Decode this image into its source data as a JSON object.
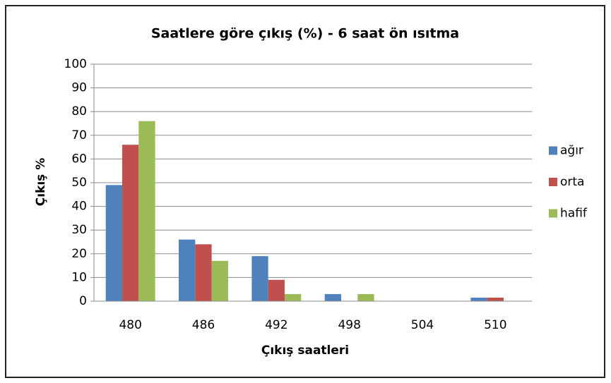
{
  "chart_data": {
    "type": "bar",
    "title": "Saatlere göre çıkış (%) - 6 saat ön ısıtma",
    "x_label": "Çıkış saatleri",
    "y_label": "Çıkış %",
    "categories": [
      "480",
      "486",
      "492",
      "498",
      "504",
      "510"
    ],
    "series": [
      {
        "name": "ağır",
        "color": "#4f81bd",
        "values": [
          49,
          26,
          19,
          3,
          0,
          1.5
        ]
      },
      {
        "name": "orta",
        "color": "#c0504d",
        "values": [
          66,
          24,
          9,
          0,
          0,
          1.5
        ]
      },
      {
        "name": "hafif",
        "color": "#9bbb59",
        "values": [
          76,
          17,
          3,
          3,
          0,
          0
        ]
      }
    ],
    "ylim": [
      0,
      100
    ],
    "yticks": [
      0,
      10,
      20,
      30,
      40,
      50,
      60,
      70,
      80,
      90,
      100
    ],
    "grid": true,
    "legend": "right"
  }
}
